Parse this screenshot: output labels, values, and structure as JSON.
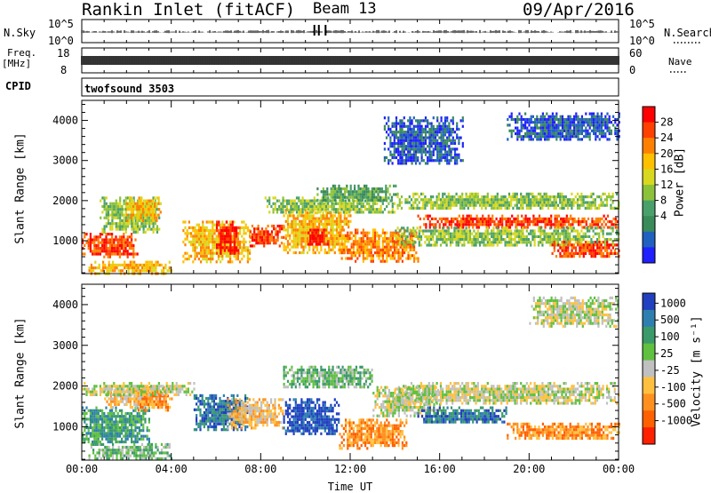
{
  "header": {
    "station": "Rankin Inlet (fitACF)",
    "beam": "Beam 13",
    "date": "09/Apr/2016"
  },
  "aux_panels": {
    "nsky_label": "N.Sky",
    "nsky_ticks": [
      "10^5",
      "10^0"
    ],
    "nsearch_label": "N.Search",
    "nsearch_ticks": [
      "10^5",
      "10^0"
    ],
    "freq_label": "Freq.",
    "freq_unit": "[MHz]",
    "freq_ticks": [
      "18",
      "8"
    ],
    "nave_label": "Nave",
    "nave_ticks": [
      "60",
      "0"
    ],
    "cpid_label": "CPID",
    "cpid_value": "twofsound 3503"
  },
  "chart_data": [
    {
      "type": "heatmap",
      "name": "power",
      "ylabel": "Slant Range [km]",
      "yticks": [
        1000,
        2000,
        3000,
        4000
      ],
      "ylim": [
        180,
        4500
      ],
      "xlim": [
        0,
        24
      ],
      "colorbar_label": "Power [dB]",
      "colorbar_ticks": [
        "28",
        "24",
        "20",
        "16",
        "12",
        "8",
        "4"
      ],
      "colorscale": [
        "#2020ff",
        "#2060c0",
        "#3a8a5a",
        "#4aa06a",
        "#8cc23a",
        "#d8d820",
        "#ffc000",
        "#ff8000",
        "#ff4000",
        "#ff0000"
      ],
      "bands": [
        {
          "x": [
            0.0,
            2.5
          ],
          "y": [
            600,
            1200
          ],
          "level": 8
        },
        {
          "x": [
            0.8,
            3.5
          ],
          "y": [
            1200,
            2100
          ],
          "level": 4
        },
        {
          "x": [
            2.0,
            3.5
          ],
          "y": [
            1500,
            2100
          ],
          "level": 6
        },
        {
          "x": [
            4.5,
            7.5
          ],
          "y": [
            500,
            1500
          ],
          "level": 6
        },
        {
          "x": [
            6.0,
            7.0
          ],
          "y": [
            700,
            1500
          ],
          "level": 9
        },
        {
          "x": [
            7.5,
            9.0
          ],
          "y": [
            900,
            1400
          ],
          "level": 8
        },
        {
          "x": [
            9.0,
            12.0
          ],
          "y": [
            700,
            1800
          ],
          "level": 6
        },
        {
          "x": [
            10.0,
            11.0
          ],
          "y": [
            900,
            1300
          ],
          "level": 9
        },
        {
          "x": [
            11.5,
            15.0
          ],
          "y": [
            500,
            1300
          ],
          "level": 7
        },
        {
          "x": [
            8.0,
            14.0
          ],
          "y": [
            1700,
            2100
          ],
          "level": 4
        },
        {
          "x": [
            10.5,
            14.0
          ],
          "y": [
            2000,
            2400
          ],
          "level": 3
        },
        {
          "x": [
            14.0,
            24.0
          ],
          "y": [
            1800,
            2200
          ],
          "level": 4
        },
        {
          "x": [
            15.0,
            24.0
          ],
          "y": [
            1350,
            1650
          ],
          "level": 8
        },
        {
          "x": [
            14.0,
            24.0
          ],
          "y": [
            900,
            1350
          ],
          "level": 4
        },
        {
          "x": [
            21.0,
            24.0
          ],
          "y": [
            600,
            1000
          ],
          "level": 8
        },
        {
          "x": [
            0.3,
            4.0
          ],
          "y": [
            200,
            500
          ],
          "level": 6
        },
        {
          "x": [
            19.0,
            24.0
          ],
          "y": [
            3500,
            4200
          ],
          "level": 1
        },
        {
          "x": [
            13.5,
            17.0
          ],
          "y": [
            2900,
            4100
          ],
          "level": 1
        }
      ]
    },
    {
      "type": "heatmap",
      "name": "velocity",
      "ylabel": "Slant Range [km]",
      "yticks": [
        1000,
        2000,
        3000,
        4000
      ],
      "ylim": [
        180,
        4500
      ],
      "xlim": [
        0,
        24
      ],
      "xlabel": "Time UT",
      "xticks": [
        "00:00",
        "04:00",
        "08:00",
        "12:00",
        "16:00",
        "20:00",
        "00:00"
      ],
      "colorbar_label": "Velocity [m s⁻¹]",
      "colorbar_ticks": [
        "1000",
        "500",
        "100",
        "25",
        "-25",
        "-100",
        "-500",
        "-1000"
      ],
      "colorscale": [
        "#2040c0",
        "#2e7fb0",
        "#3a9a6a",
        "#60c040",
        "#c0c0c0",
        "#ffc040",
        "#ff9020",
        "#ff6000",
        "#ff2000"
      ],
      "bands": [
        {
          "x": [
            0.0,
            3.0
          ],
          "y": [
            600,
            1500
          ],
          "level": 2
        },
        {
          "x": [
            1.0,
            3.5
          ],
          "y": [
            1500,
            2000
          ],
          "level": 5
        },
        {
          "x": [
            2.5,
            4.0
          ],
          "y": [
            1400,
            2000
          ],
          "level": 6
        },
        {
          "x": [
            5.0,
            7.5
          ],
          "y": [
            900,
            1800
          ],
          "level": 1
        },
        {
          "x": [
            6.5,
            9.0
          ],
          "y": [
            1000,
            1700
          ],
          "level": 5
        },
        {
          "x": [
            9.0,
            11.5
          ],
          "y": [
            800,
            1700
          ],
          "level": 0
        },
        {
          "x": [
            11.5,
            14.5
          ],
          "y": [
            500,
            1200
          ],
          "level": 6
        },
        {
          "x": [
            13.0,
            16.0
          ],
          "y": [
            1300,
            2000
          ],
          "level": 4
        },
        {
          "x": [
            14.0,
            24.0
          ],
          "y": [
            1600,
            2100
          ],
          "level": 4
        },
        {
          "x": [
            15.0,
            19.0
          ],
          "y": [
            1100,
            1500
          ],
          "level": 1
        },
        {
          "x": [
            19.0,
            24.0
          ],
          "y": [
            700,
            1100
          ],
          "level": 6
        },
        {
          "x": [
            0.0,
            5.0
          ],
          "y": [
            1800,
            2100
          ],
          "level": 4
        },
        {
          "x": [
            0.3,
            4.0
          ],
          "y": [
            200,
            600
          ],
          "level": 3
        },
        {
          "x": [
            9.0,
            13.0
          ],
          "y": [
            2000,
            2500
          ],
          "level": 3
        },
        {
          "x": [
            20.0,
            24.0
          ],
          "y": [
            3500,
            4200
          ],
          "level": 4
        }
      ]
    }
  ]
}
